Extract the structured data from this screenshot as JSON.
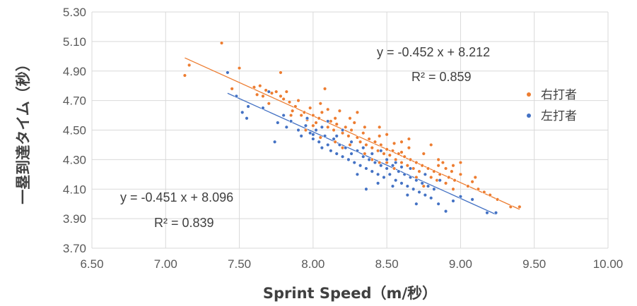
{
  "chart_data": {
    "type": "scatter",
    "xlabel": "Sprint Speed（m/秒）",
    "ylabel": "一塁到達タイム（秒）",
    "xlim": [
      6.5,
      10.0
    ],
    "ylim": [
      3.7,
      5.3
    ],
    "x_ticks": [
      "6.50",
      "7.00",
      "7.50",
      "8.00",
      "8.50",
      "9.00",
      "9.50",
      "10.00"
    ],
    "y_ticks": [
      "3.70",
      "3.90",
      "4.10",
      "4.30",
      "4.50",
      "4.70",
      "4.90",
      "5.10",
      "5.30"
    ],
    "grid": true,
    "legend_position": "right",
    "series": [
      {
        "name": "右打者",
        "color": "#ED7D31",
        "trendline": {
          "slope": -0.452,
          "intercept": 8.212,
          "x_range": [
            7.13,
            9.4
          ]
        },
        "equation": "y = -0.452 x + 8.212",
        "r2": "R² = 0.859",
        "points": [
          [
            7.13,
            4.87
          ],
          [
            7.16,
            4.94
          ],
          [
            7.38,
            5.09
          ],
          [
            7.45,
            4.78
          ],
          [
            7.5,
            4.92
          ],
          [
            7.6,
            4.79
          ],
          [
            7.62,
            4.74
          ],
          [
            7.64,
            4.8
          ],
          [
            7.66,
            4.73
          ],
          [
            7.68,
            4.77
          ],
          [
            7.7,
            4.68
          ],
          [
            7.72,
            4.75
          ],
          [
            7.75,
            4.76
          ],
          [
            7.78,
            4.89
          ],
          [
            7.78,
            4.73
          ],
          [
            7.8,
            4.71
          ],
          [
            7.82,
            4.76
          ],
          [
            7.84,
            4.69
          ],
          [
            7.86,
            4.63
          ],
          [
            7.88,
            4.66
          ],
          [
            7.9,
            4.7
          ],
          [
            7.92,
            4.6
          ],
          [
            7.94,
            4.62
          ],
          [
            7.96,
            4.57
          ],
          [
            7.98,
            4.65
          ],
          [
            8.0,
            4.6
          ],
          [
            8.02,
            4.55
          ],
          [
            8.04,
            4.58
          ],
          [
            8.06,
            4.62
          ],
          [
            8.08,
            4.78
          ],
          [
            8.1,
            4.52
          ],
          [
            8.12,
            4.56
          ],
          [
            8.14,
            4.5
          ],
          [
            8.16,
            4.54
          ],
          [
            8.18,
            4.63
          ],
          [
            8.2,
            4.48
          ],
          [
            8.22,
            4.52
          ],
          [
            8.24,
            4.46
          ],
          [
            8.26,
            4.5
          ],
          [
            8.28,
            4.55
          ],
          [
            8.3,
            4.45
          ],
          [
            8.32,
            4.42
          ],
          [
            8.34,
            4.48
          ],
          [
            8.36,
            4.4
          ],
          [
            8.38,
            4.44
          ],
          [
            8.4,
            4.38
          ],
          [
            8.42,
            4.42
          ],
          [
            8.44,
            4.36
          ],
          [
            8.46,
            4.4
          ],
          [
            8.48,
            4.34
          ],
          [
            8.5,
            4.37
          ],
          [
            8.52,
            4.33
          ],
          [
            8.54,
            4.36
          ],
          [
            8.56,
            4.3
          ],
          [
            8.58,
            4.34
          ],
          [
            8.6,
            4.28
          ],
          [
            8.62,
            4.32
          ],
          [
            8.64,
            4.26
          ],
          [
            8.66,
            4.3
          ],
          [
            8.68,
            4.24
          ],
          [
            8.7,
            4.28
          ],
          [
            8.72,
            4.22
          ],
          [
            8.74,
            4.26
          ],
          [
            8.76,
            4.2
          ],
          [
            8.78,
            4.24
          ],
          [
            8.8,
            4.18
          ],
          [
            8.82,
            4.22
          ],
          [
            8.84,
            4.16
          ],
          [
            8.86,
            4.2
          ],
          [
            8.88,
            4.28
          ],
          [
            8.9,
            4.24
          ],
          [
            8.92,
            4.18
          ],
          [
            8.94,
            4.22
          ],
          [
            8.96,
            4.16
          ],
          [
            9.0,
            4.2
          ],
          [
            9.05,
            4.12
          ],
          [
            9.08,
            4.15
          ],
          [
            9.12,
            4.1
          ],
          [
            9.16,
            4.08
          ],
          [
            9.2,
            4.06
          ],
          [
            9.25,
            4.03
          ],
          [
            9.34,
            3.98
          ],
          [
            9.4,
            3.98
          ],
          [
            8.05,
            4.45
          ],
          [
            8.15,
            4.58
          ],
          [
            8.25,
            4.4
          ],
          [
            8.35,
            4.52
          ],
          [
            8.45,
            4.46
          ],
          [
            8.55,
            4.41
          ],
          [
            8.65,
            4.38
          ],
          [
            8.75,
            4.34
          ],
          [
            8.85,
            4.3
          ],
          [
            8.95,
            4.26
          ],
          [
            8.4,
            4.3
          ],
          [
            8.5,
            4.28
          ],
          [
            8.6,
            4.35
          ],
          [
            8.7,
            4.18
          ],
          [
            8.3,
            4.62
          ],
          [
            8.2,
            4.38
          ],
          [
            8.1,
            4.64
          ],
          [
            7.95,
            4.5
          ],
          [
            8.0,
            4.53
          ],
          [
            8.5,
            4.47
          ],
          [
            8.6,
            4.42
          ],
          [
            8.8,
            4.4
          ],
          [
            8.9,
            4.14
          ],
          [
            9.1,
            4.18
          ],
          [
            8.45,
            4.28
          ],
          [
            8.55,
            4.24
          ],
          [
            8.35,
            4.34
          ],
          [
            7.85,
            4.6
          ],
          [
            8.05,
            4.68
          ],
          [
            8.15,
            4.42
          ],
          [
            8.25,
            4.58
          ],
          [
            8.45,
            4.52
          ],
          [
            8.65,
            4.44
          ],
          [
            8.75,
            4.12
          ],
          [
            8.85,
            4.26
          ],
          [
            8.95,
            4.1
          ],
          [
            9.0,
            4.28
          ]
        ]
      },
      {
        "name": "左打者",
        "color": "#4472C4",
        "trendline": {
          "slope": -0.451,
          "intercept": 8.096,
          "x_range": [
            7.42,
            9.24
          ]
        },
        "equation": "y = -0.451 x + 8.096",
        "r2": "R² = 0.839",
        "points": [
          [
            7.42,
            4.89
          ],
          [
            7.48,
            4.73
          ],
          [
            7.52,
            4.62
          ],
          [
            7.55,
            4.58
          ],
          [
            7.56,
            4.66
          ],
          [
            7.66,
            4.65
          ],
          [
            7.7,
            4.76
          ],
          [
            7.74,
            4.42
          ],
          [
            7.76,
            4.55
          ],
          [
            7.8,
            4.6
          ],
          [
            7.82,
            4.52
          ],
          [
            7.85,
            4.56
          ],
          [
            7.9,
            4.5
          ],
          [
            7.92,
            4.46
          ],
          [
            7.95,
            4.53
          ],
          [
            7.98,
            4.48
          ],
          [
            8.0,
            4.44
          ],
          [
            8.02,
            4.5
          ],
          [
            8.04,
            4.42
          ],
          [
            8.06,
            4.38
          ],
          [
            8.08,
            4.46
          ],
          [
            8.1,
            4.4
          ],
          [
            8.12,
            4.36
          ],
          [
            8.14,
            4.44
          ],
          [
            8.16,
            4.34
          ],
          [
            8.18,
            4.4
          ],
          [
            8.2,
            4.32
          ],
          [
            8.22,
            4.38
          ],
          [
            8.24,
            4.3
          ],
          [
            8.26,
            4.34
          ],
          [
            8.28,
            4.28
          ],
          [
            8.3,
            4.36
          ],
          [
            8.32,
            4.26
          ],
          [
            8.34,
            4.32
          ],
          [
            8.36,
            4.24
          ],
          [
            8.38,
            4.3
          ],
          [
            8.4,
            4.22
          ],
          [
            8.42,
            4.28
          ],
          [
            8.44,
            4.2
          ],
          [
            8.46,
            4.26
          ],
          [
            8.48,
            4.18
          ],
          [
            8.5,
            4.24
          ],
          [
            8.52,
            4.2
          ],
          [
            8.54,
            4.26
          ],
          [
            8.56,
            4.16
          ],
          [
            8.58,
            4.22
          ],
          [
            8.6,
            4.14
          ],
          [
            8.62,
            4.2
          ],
          [
            8.64,
            4.12
          ],
          [
            8.66,
            4.18
          ],
          [
            8.68,
            4.1
          ],
          [
            8.7,
            4.16
          ],
          [
            8.72,
            4.08
          ],
          [
            8.74,
            4.14
          ],
          [
            8.76,
            4.06
          ],
          [
            8.78,
            4.12
          ],
          [
            8.8,
            4.04
          ],
          [
            8.82,
            4.1
          ],
          [
            8.85,
            4.0
          ],
          [
            8.9,
            3.95
          ],
          [
            8.95,
            4.02
          ],
          [
            9.0,
            4.05
          ],
          [
            9.08,
            4.03
          ],
          [
            9.18,
            3.94
          ],
          [
            9.24,
            3.94
          ],
          [
            8.36,
            4.1
          ],
          [
            8.2,
            4.5
          ],
          [
            8.1,
            4.56
          ],
          [
            8.3,
            4.2
          ],
          [
            8.5,
            4.3
          ],
          [
            8.6,
            4.25
          ],
          [
            8.4,
            4.34
          ],
          [
            8.0,
            4.47
          ],
          [
            8.26,
            4.42
          ],
          [
            8.46,
            4.36
          ],
          [
            8.56,
            4.28
          ],
          [
            8.66,
            4.24
          ],
          [
            8.76,
            4.2
          ],
          [
            8.86,
            4.16
          ],
          [
            8.44,
            4.14
          ],
          [
            8.54,
            4.12
          ],
          [
            8.64,
            4.06
          ],
          [
            8.7,
            4.0
          ],
          [
            7.96,
            4.58
          ],
          [
            8.06,
            4.52
          ],
          [
            8.16,
            4.46
          ],
          [
            8.34,
            4.38
          ]
        ]
      }
    ]
  }
}
